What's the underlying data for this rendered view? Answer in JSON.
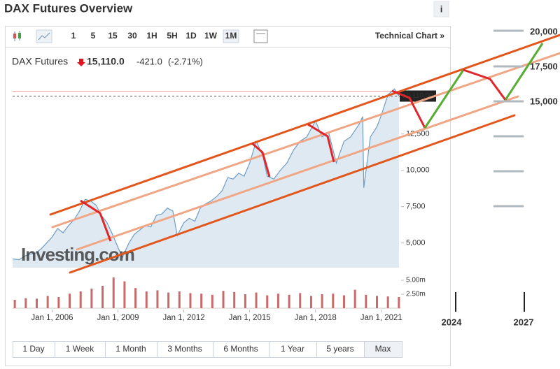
{
  "header": {
    "title": "DAX Futures Overview",
    "info": "i"
  },
  "toolbar": {
    "intervals": [
      "1",
      "5",
      "15",
      "30",
      "1H",
      "5H",
      "1D",
      "1W",
      "1M"
    ],
    "link": "Technical Chart »"
  },
  "quote": {
    "name": "DAX Futures",
    "price": "15,110.0",
    "change": "-421.0",
    "change_pct": "(-2.71%)",
    "marker": "15,110.00"
  },
  "watermark": "Investing.com",
  "chart_data": [
    {
      "type": "line",
      "color": "#6f9cc4",
      "fill": "#dfe9f2",
      "x": [
        2004.2,
        2004.5,
        2004.75,
        2005,
        2005.25,
        2005.5,
        2005.75,
        2006,
        2006.25,
        2006.5,
        2006.75,
        2007,
        2007.25,
        2007.5,
        2007.75,
        2008,
        2008.25,
        2008.5,
        2008.75,
        2009,
        2009.2,
        2009.5,
        2009.75,
        2010,
        2010.25,
        2010.5,
        2010.75,
        2011,
        2011.25,
        2011.5,
        2011.7,
        2012,
        2012.25,
        2012.5,
        2012.75,
        2013,
        2013.25,
        2013.5,
        2013.75,
        2014,
        2014.25,
        2014.5,
        2014.75,
        2015,
        2015.3,
        2015.6,
        2015.8,
        2016.1,
        2016.4,
        2016.7,
        2017,
        2017.3,
        2017.6,
        2018,
        2018.3,
        2018.6,
        2018.95,
        2019.3,
        2019.6,
        2020,
        2020.15,
        2020.2,
        2020.5,
        2020.8,
        2021,
        2021.3,
        2021.6,
        2021.8
      ],
      "values": [
        3900,
        3850,
        4100,
        4250,
        4300,
        4600,
        5000,
        5400,
        6000,
        5700,
        6200,
        6600,
        7200,
        8000,
        7900,
        7600,
        6900,
        6400,
        5600,
        4700,
        4000,
        5000,
        5600,
        5900,
        6200,
        6100,
        6900,
        7000,
        7400,
        7200,
        5500,
        6400,
        6700,
        6500,
        7400,
        7700,
        7900,
        8200,
        8600,
        9500,
        9400,
        9800,
        9600,
        10500,
        12000,
        11000,
        9600,
        9400,
        10000,
        10500,
        11400,
        12000,
        12300,
        13400,
        12300,
        12600,
        10500,
        12000,
        12300,
        13200,
        13700,
        8800,
        12300,
        13000,
        13800,
        15200,
        15600,
        15110
      ],
      "xlim": [
        2004.2,
        2021.9
      ],
      "xticks": [
        {
          "value": 2006,
          "label": "Jan 1, 2006"
        },
        {
          "value": 2009,
          "label": "Jan 1, 2009"
        },
        {
          "value": 2012,
          "label": "Jan 1, 2012"
        },
        {
          "value": 2015,
          "label": "Jan 1, 2015"
        },
        {
          "value": 2018,
          "label": "Jan 1, 2018"
        },
        {
          "value": 2021,
          "label": "Jan 1, 2021"
        }
      ],
      "ylim": [
        3300,
        18500
      ],
      "yticks": [
        {
          "value": 5000,
          "label": "5,000"
        },
        {
          "value": 7500,
          "label": "7,500"
        },
        {
          "value": 10000,
          "label": "10,000"
        },
        {
          "value": 12500,
          "label": "12,500"
        }
      ]
    },
    {
      "type": "bar",
      "color": "#c96a6a",
      "x": [
        2004.3,
        2004.8,
        2005.3,
        2005.8,
        2006.3,
        2006.8,
        2007.3,
        2007.8,
        2008.3,
        2008.8,
        2009.3,
        2009.8,
        2010.3,
        2010.8,
        2011.3,
        2011.8,
        2012.3,
        2012.8,
        2013.3,
        2013.8,
        2014.3,
        2014.8,
        2015.3,
        2015.8,
        2016.3,
        2016.8,
        2017.3,
        2017.8,
        2018.3,
        2018.8,
        2019.3,
        2019.8,
        2020.3,
        2020.8,
        2021.3,
        2021.8
      ],
      "values": [
        1500000,
        1800000,
        1700000,
        2200000,
        2000000,
        2600000,
        3000000,
        3500000,
        4000000,
        5500000,
        4800000,
        3600000,
        3000000,
        3200000,
        2800000,
        3000000,
        2700000,
        2600000,
        2400000,
        3100000,
        2900000,
        2500000,
        2800000,
        2300000,
        2600000,
        2400000,
        2700000,
        2200000,
        2500000,
        2600000,
        2300000,
        3300000,
        2400000,
        2200000,
        2100000,
        2000000
      ],
      "xlim": [
        2004.2,
        2021.9
      ],
      "ylim": [
        0,
        6000000
      ],
      "yticks": [
        {
          "value": 2500000,
          "label": "2.50m"
        },
        {
          "value": 5000000,
          "label": "5.00m"
        }
      ]
    }
  ],
  "ranges": [
    "1 Day",
    "1 Week",
    "1 Month",
    "3 Months",
    "6 Months",
    "1 Year",
    "5 years",
    "Max"
  ],
  "projection": {
    "y_labels": [
      "20,000",
      "17,500",
      "15,000"
    ],
    "x_labels": [
      "2024",
      "2027"
    ]
  }
}
